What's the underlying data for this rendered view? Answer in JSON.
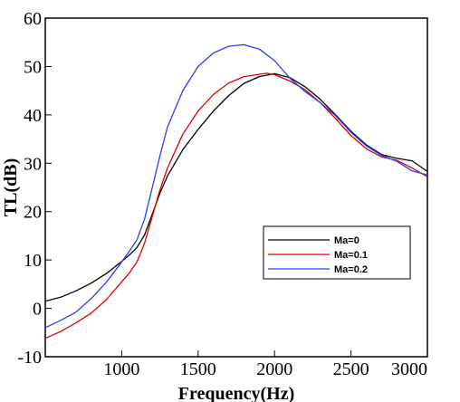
{
  "chart_data": {
    "type": "line",
    "xlabel": "Frequency(Hz)",
    "ylabel": "TL(dB)",
    "xlim": [
      500,
      3000
    ],
    "ylim": [
      -10,
      60
    ],
    "xticks": [
      1000,
      1500,
      2000,
      2500,
      3000
    ],
    "yticks": [
      -10,
      0,
      10,
      20,
      30,
      40,
      50,
      60
    ],
    "grid": false,
    "legend_position": "center-right",
    "series": [
      {
        "name": "Ma=0",
        "color": "#000000",
        "x": [
          500,
          600,
          700,
          800,
          900,
          1000,
          1050,
          1100,
          1150,
          1200,
          1250,
          1300,
          1400,
          1500,
          1600,
          1700,
          1800,
          1900,
          2000,
          2100,
          2200,
          2300,
          2400,
          2500,
          2600,
          2700,
          2800,
          2900,
          3000
        ],
        "y": [
          1.5,
          2.3,
          3.6,
          5.2,
          7.2,
          9.7,
          11.0,
          12.6,
          15.2,
          19.5,
          23.8,
          27.4,
          32.8,
          37.0,
          40.8,
          44.0,
          46.5,
          47.9,
          48.5,
          47.7,
          45.8,
          43.2,
          40.0,
          36.6,
          33.8,
          31.8,
          31.0,
          30.5,
          28.3
        ]
      },
      {
        "name": "Ma=0.1",
        "color": "#e00000",
        "x": [
          500,
          600,
          700,
          800,
          900,
          1000,
          1050,
          1100,
          1150,
          1200,
          1250,
          1300,
          1400,
          1500,
          1600,
          1700,
          1800,
          1900,
          1950,
          2000,
          2100,
          2200,
          2300,
          2400,
          2500,
          2600,
          2700,
          2800,
          2900,
          3000
        ],
        "y": [
          -6.2,
          -4.8,
          -3.0,
          -1.0,
          1.8,
          5.5,
          7.3,
          9.6,
          13.5,
          19.0,
          24.5,
          29.0,
          36.0,
          40.8,
          44.2,
          46.6,
          47.9,
          48.4,
          48.6,
          48.3,
          47.0,
          45.2,
          42.5,
          39.2,
          35.7,
          33.0,
          31.3,
          30.6,
          29.0,
          27.2
        ]
      },
      {
        "name": "Ma=0.2",
        "color": "#2b3bff",
        "x": [
          500,
          600,
          700,
          800,
          900,
          1000,
          1050,
          1100,
          1150,
          1200,
          1250,
          1300,
          1400,
          1500,
          1600,
          1700,
          1800,
          1900,
          2000,
          2100,
          2200,
          2300,
          2400,
          2500,
          2600,
          2700,
          2800,
          2900,
          3000
        ],
        "y": [
          -4.0,
          -2.5,
          -0.8,
          2.0,
          5.4,
          9.6,
          11.8,
          14.2,
          18.5,
          25.0,
          31.5,
          37.5,
          45.0,
          50.0,
          52.8,
          54.2,
          54.5,
          53.6,
          51.2,
          47.6,
          44.8,
          42.5,
          39.8,
          36.4,
          33.6,
          31.6,
          30.4,
          28.4,
          27.6
        ]
      }
    ]
  }
}
